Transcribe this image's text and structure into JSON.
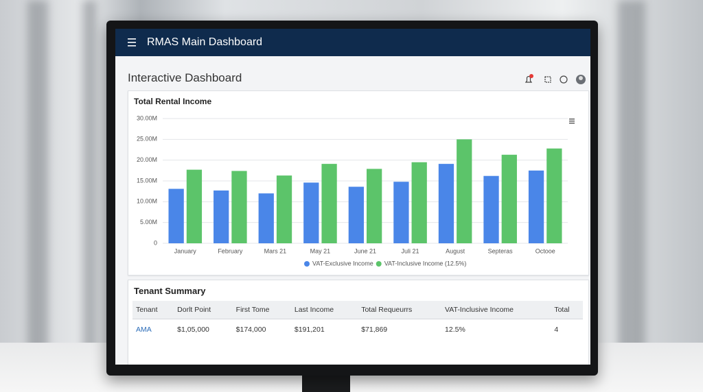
{
  "app_bar": {
    "title": "RMAS Main Dashboard"
  },
  "page": {
    "title": "Interactive Dashboard"
  },
  "chart_data": {
    "type": "bar",
    "title": "Total Rental Income",
    "categories": [
      "January",
      "February",
      "Mars 21",
      "May 21",
      "June 21",
      "Juli 21",
      "August",
      "Septeras",
      "Octooe"
    ],
    "series": [
      {
        "name": "VAT-Exclusive Income",
        "color": "#4a86e8",
        "values": [
          13100000,
          12700000,
          12000000,
          14600000,
          13600000,
          14800000,
          19100000,
          16200000,
          17500000
        ]
      },
      {
        "name": "VAT-Inclusive Income (12.5%)",
        "color": "#5cc46a",
        "values": [
          17700000,
          17400000,
          16300000,
          19100000,
          17900000,
          19500000,
          25000000,
          21300000,
          22800000
        ]
      }
    ],
    "ylim": [
      0,
      30000000
    ],
    "yticks": [
      0,
      {
        "value": 5000000,
        "label": "5.00M"
      },
      {
        "value": 10000000,
        "label": "10.00M"
      },
      {
        "value": 15000000,
        "label": "15.00M"
      },
      {
        "value": 20000000,
        "label": "20.00M"
      },
      {
        "value": 25000000,
        "label": "25.00M"
      },
      {
        "value": 30000000,
        "label": "30.00M"
      }
    ],
    "grid": true,
    "legend": "bottom"
  },
  "table": {
    "title": "Tenant Summary",
    "columns": [
      "Tenant",
      "Dorlt Point",
      "First Tome",
      "Last Income",
      "Total Requeurrs",
      "VAT-Inclusive Income",
      "Total"
    ],
    "rows": [
      [
        "AMA",
        "$1,05,000",
        "$174,000",
        "$191,201",
        "$71,869",
        "12.5%",
        "4"
      ]
    ]
  }
}
